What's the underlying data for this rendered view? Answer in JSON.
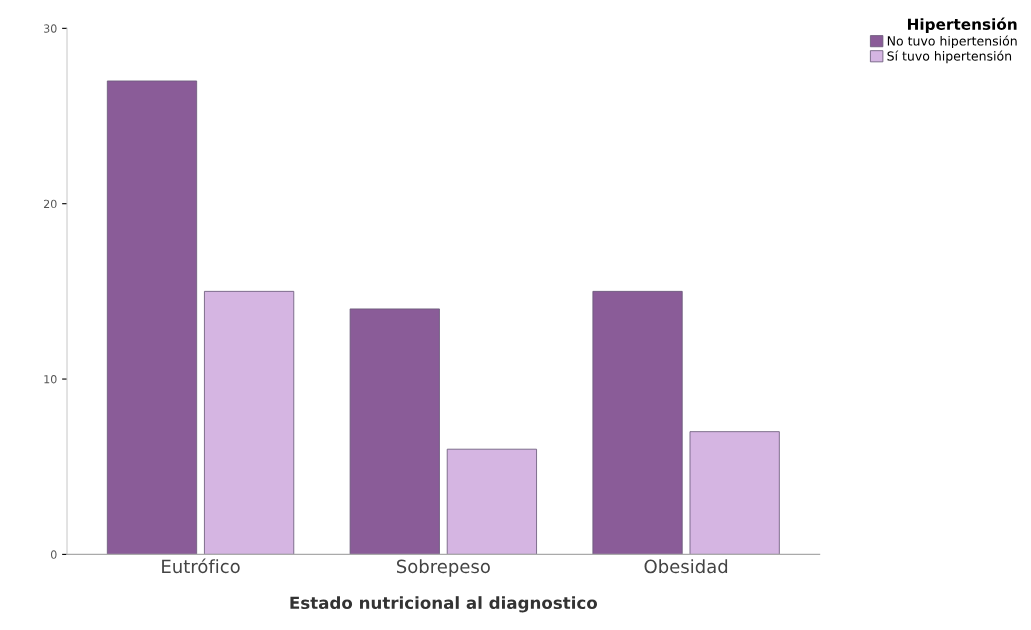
{
  "chart_data": {
    "type": "bar",
    "xlabel": "Estado nutricional al diagnostico",
    "legend_title": "Hipertensión",
    "categories": [
      "Eutrófico",
      "Sobrepeso",
      "Obesidad"
    ],
    "series": [
      {
        "name": "No tuvo hipertensión",
        "color": "#8a5c98",
        "values": [
          27,
          14,
          15
        ]
      },
      {
        "name": "Sí tuvo hipertensión",
        "color": "#d5b5e2",
        "values": [
          15,
          6,
          7
        ]
      }
    ],
    "ylim": [
      0,
      30
    ],
    "yticks": [
      0,
      10,
      20,
      30
    ],
    "grid": false,
    "legend": "top right"
  }
}
